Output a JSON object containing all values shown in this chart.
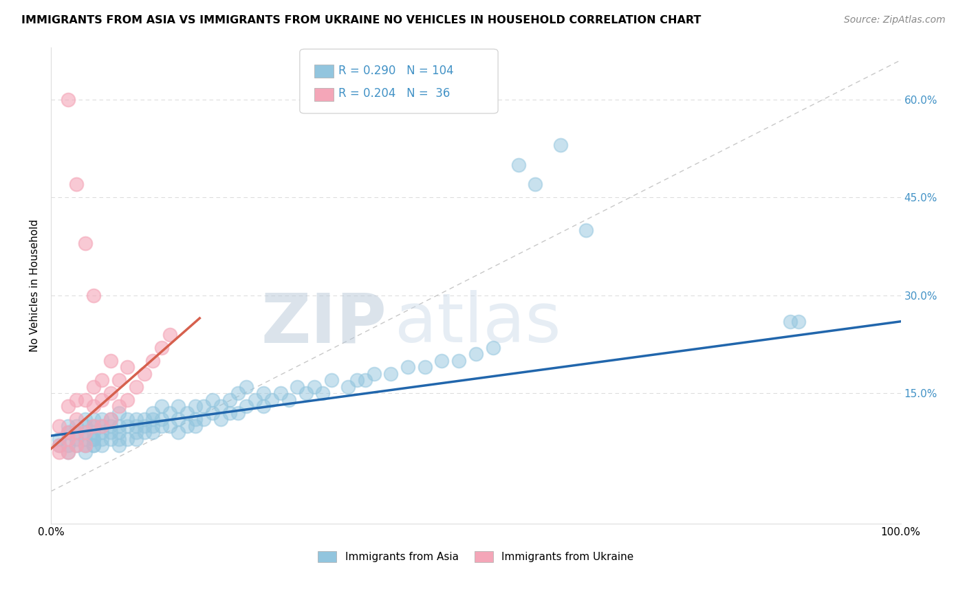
{
  "title": "IMMIGRANTS FROM ASIA VS IMMIGRANTS FROM UKRAINE NO VEHICLES IN HOUSEHOLD CORRELATION CHART",
  "source": "Source: ZipAtlas.com",
  "ylabel": "No Vehicles in Household",
  "xlim": [
    0.0,
    1.0
  ],
  "ylim": [
    -0.05,
    0.68
  ],
  "ytick_vals": [
    0.0,
    0.15,
    0.3,
    0.45,
    0.6
  ],
  "ytick_labels": [
    "",
    "15.0%",
    "30.0%",
    "45.0%",
    "60.0%"
  ],
  "legend_R_blue": "0.290",
  "legend_N_blue": "104",
  "legend_R_pink": "0.204",
  "legend_N_pink": "36",
  "legend_label_blue": "Immigrants from Asia",
  "legend_label_pink": "Immigrants from Ukraine",
  "blue_color": "#92c5de",
  "pink_color": "#f4a6b8",
  "trend_blue": "#2166ac",
  "trend_pink": "#d6604d",
  "watermark_zip": "ZIP",
  "watermark_atlas": "atlas",
  "blue_x": [
    0.01,
    0.01,
    0.02,
    0.02,
    0.02,
    0.02,
    0.03,
    0.03,
    0.03,
    0.03,
    0.04,
    0.04,
    0.04,
    0.04,
    0.04,
    0.04,
    0.05,
    0.05,
    0.05,
    0.05,
    0.05,
    0.05,
    0.05,
    0.06,
    0.06,
    0.06,
    0.06,
    0.06,
    0.07,
    0.07,
    0.07,
    0.07,
    0.08,
    0.08,
    0.08,
    0.08,
    0.08,
    0.09,
    0.09,
    0.09,
    0.1,
    0.1,
    0.1,
    0.1,
    0.11,
    0.11,
    0.11,
    0.12,
    0.12,
    0.12,
    0.12,
    0.13,
    0.13,
    0.13,
    0.14,
    0.14,
    0.15,
    0.15,
    0.15,
    0.16,
    0.16,
    0.17,
    0.17,
    0.17,
    0.18,
    0.18,
    0.19,
    0.19,
    0.2,
    0.2,
    0.21,
    0.21,
    0.22,
    0.22,
    0.23,
    0.23,
    0.24,
    0.25,
    0.25,
    0.26,
    0.27,
    0.28,
    0.29,
    0.3,
    0.31,
    0.32,
    0.33,
    0.35,
    0.36,
    0.37,
    0.38,
    0.4,
    0.42,
    0.44,
    0.46,
    0.48,
    0.5,
    0.52,
    0.55,
    0.57,
    0.6,
    0.63,
    0.87,
    0.88
  ],
  "blue_y": [
    0.07,
    0.08,
    0.06,
    0.07,
    0.09,
    0.1,
    0.07,
    0.08,
    0.09,
    0.1,
    0.06,
    0.07,
    0.08,
    0.09,
    0.1,
    0.11,
    0.07,
    0.08,
    0.09,
    0.1,
    0.11,
    0.07,
    0.08,
    0.07,
    0.08,
    0.09,
    0.1,
    0.11,
    0.08,
    0.09,
    0.1,
    0.11,
    0.07,
    0.08,
    0.09,
    0.1,
    0.12,
    0.08,
    0.1,
    0.11,
    0.08,
    0.09,
    0.1,
    0.11,
    0.09,
    0.1,
    0.11,
    0.09,
    0.1,
    0.11,
    0.12,
    0.1,
    0.11,
    0.13,
    0.1,
    0.12,
    0.09,
    0.11,
    0.13,
    0.1,
    0.12,
    0.1,
    0.11,
    0.13,
    0.11,
    0.13,
    0.12,
    0.14,
    0.11,
    0.13,
    0.12,
    0.14,
    0.12,
    0.15,
    0.13,
    0.16,
    0.14,
    0.13,
    0.15,
    0.14,
    0.15,
    0.14,
    0.16,
    0.15,
    0.16,
    0.15,
    0.17,
    0.16,
    0.17,
    0.17,
    0.18,
    0.18,
    0.19,
    0.19,
    0.2,
    0.2,
    0.21,
    0.22,
    0.5,
    0.47,
    0.53,
    0.4,
    0.26,
    0.26
  ],
  "pink_x": [
    0.01,
    0.01,
    0.01,
    0.02,
    0.02,
    0.02,
    0.02,
    0.03,
    0.03,
    0.03,
    0.03,
    0.04,
    0.04,
    0.04,
    0.05,
    0.05,
    0.05,
    0.06,
    0.06,
    0.06,
    0.07,
    0.07,
    0.07,
    0.08,
    0.08,
    0.09,
    0.09,
    0.1,
    0.11,
    0.12,
    0.13,
    0.14,
    0.02,
    0.03,
    0.04,
    0.05
  ],
  "pink_y": [
    0.06,
    0.07,
    0.1,
    0.06,
    0.08,
    0.09,
    0.13,
    0.07,
    0.09,
    0.11,
    0.14,
    0.07,
    0.09,
    0.14,
    0.1,
    0.13,
    0.16,
    0.1,
    0.14,
    0.17,
    0.11,
    0.15,
    0.2,
    0.13,
    0.17,
    0.14,
    0.19,
    0.16,
    0.18,
    0.2,
    0.22,
    0.24,
    0.6,
    0.47,
    0.38,
    0.3
  ],
  "blue_trend_x": [
    0.0,
    1.0
  ],
  "blue_trend_y": [
    0.085,
    0.26
  ],
  "pink_trend_x": [
    0.0,
    0.175
  ],
  "pink_trend_y": [
    0.065,
    0.265
  ]
}
